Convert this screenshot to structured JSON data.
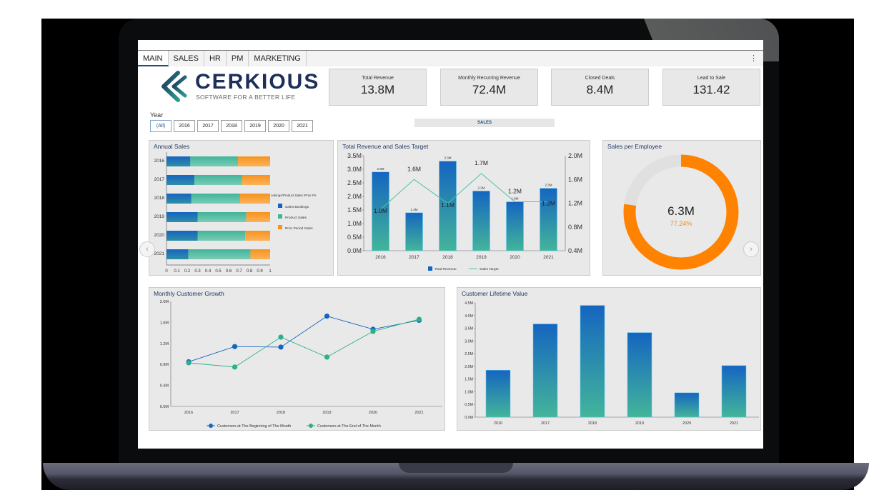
{
  "tabs": [
    {
      "label": "MAIN",
      "active": true
    },
    {
      "label": "SALES"
    },
    {
      "label": "HR"
    },
    {
      "label": "PM"
    },
    {
      "label": "MARKETING"
    }
  ],
  "menu_icon": "⋮",
  "logo": {
    "name": "CERKIOUS",
    "tagline": "SOFTWARE FOR A BETTER LIFE"
  },
  "year_filter": {
    "label": "Year",
    "options": [
      "(All)",
      "2016",
      "2017",
      "2018",
      "2019",
      "2020",
      "2021"
    ],
    "selected": "(All)"
  },
  "kpis": [
    {
      "title": "Total Revenue",
      "value": "13.8M"
    },
    {
      "title": "Monthly Recurring Revenue",
      "value": "72.4M"
    },
    {
      "title": "Closed Deals",
      "value": "8.4M"
    },
    {
      "title": "Lead to Sale",
      "value": "131.42"
    }
  ],
  "section_header": "SALES",
  "colors": {
    "blue": "#1565c0",
    "teal": "#3fb59a",
    "orange": "#f7931e",
    "donut": "#ff8200",
    "donut_track": "#e0e0e0",
    "title": "#1f3864"
  },
  "nav": {
    "prev": "‹",
    "next": "›"
  },
  "chart_data": [
    {
      "type": "bar",
      "orientation": "horizontal",
      "stacked": true,
      "title": "Annual Sales",
      "categories": [
        "2016",
        "2017",
        "2018",
        "2019",
        "2020",
        "2021"
      ],
      "series": [
        {
          "name": "Sales Bookings",
          "values": [
            0.23,
            0.27,
            0.24,
            0.3,
            0.3,
            0.21
          ]
        },
        {
          "name": "Product Sales",
          "values": [
            0.46,
            0.46,
            0.47,
            0.47,
            0.46,
            0.6
          ]
        },
        {
          "name": "Prior Period Sales",
          "values": [
            0.31,
            0.27,
            0.29,
            0.23,
            0.24,
            0.19
          ]
        }
      ],
      "legend_title": "ookings/Product Sales /Prior Pe",
      "xticks": [
        "0",
        "0.1",
        "0.2",
        "0.3",
        "0.4",
        "0.5",
        "0.6",
        "0.7",
        "0.8",
        "0.9",
        "1"
      ],
      "xlim": [
        0,
        1
      ]
    },
    {
      "type": "bar+line",
      "title": "Total Revenue and Sales Target",
      "categories": [
        "2016",
        "2017",
        "2018",
        "2019",
        "2020",
        "2021"
      ],
      "series": [
        {
          "name": "Total Revenue",
          "type": "bar",
          "axis": "left",
          "values": [
            2.9,
            1.4,
            3.3,
            2.2,
            1.8,
            2.3
          ],
          "labels": [
            "2.9M",
            "1.4M",
            "3.3M",
            "2.2M",
            "1.8M",
            "2.3M"
          ]
        },
        {
          "name": "Sales Target",
          "type": "line",
          "axis": "right",
          "values": [
            1.0,
            1.6,
            1.1,
            1.7,
            1.2,
            1.2
          ],
          "labels": [
            "1.0M",
            "1.6M",
            "1.1M",
            "1.7M",
            "1.2M",
            "1.2M"
          ]
        }
      ],
      "yticks_left": [
        "0.0M",
        "0.5M",
        "1.0M",
        "1.5M",
        "2.0M",
        "2.5M",
        "3.0M",
        "3.5M"
      ],
      "ylim_left": [
        0,
        3.5
      ],
      "yticks_right": [
        "0.4M",
        "0.8M",
        "1.2M",
        "1.6M",
        "2.0M"
      ],
      "ylim_right": [
        0.4,
        2.0
      ]
    },
    {
      "type": "pie",
      "variant": "donut",
      "title": "Sales per Employee",
      "center_value": "6.3M",
      "center_percent": "77.24%",
      "values": [
        77.24,
        22.76
      ]
    },
    {
      "type": "line",
      "title": "Monthly Customer Growth",
      "categories": [
        "2016",
        "2017",
        "2018",
        "2019",
        "2020",
        "2021"
      ],
      "series": [
        {
          "name": "Customers at The Beginning of The Month",
          "values": [
            0.85,
            1.14,
            1.13,
            1.72,
            1.47,
            1.64
          ]
        },
        {
          "name": "Customers at The End of The Month",
          "values": [
            0.83,
            0.75,
            1.32,
            0.94,
            1.43,
            1.66
          ]
        }
      ],
      "yticks": [
        "0.0M",
        "0.4M",
        "0.8M",
        "1.2M",
        "1.6M",
        "2.0M"
      ],
      "ylim": [
        0,
        2.0
      ],
      "legend_position": "bottom"
    },
    {
      "type": "bar",
      "title": "Customer Lifetime Value",
      "categories": [
        "2016",
        "2017",
        "2018",
        "2019",
        "2020",
        "2021"
      ],
      "values": [
        1.85,
        3.67,
        4.4,
        3.33,
        0.96,
        2.03
      ],
      "yticks": [
        "0.0M",
        "0.5M",
        "1.0M",
        "1.5M",
        "2.0M",
        "2.5M",
        "3.0M",
        "3.5M",
        "4.0M",
        "4.5M"
      ],
      "ylim": [
        0,
        4.5
      ]
    }
  ]
}
